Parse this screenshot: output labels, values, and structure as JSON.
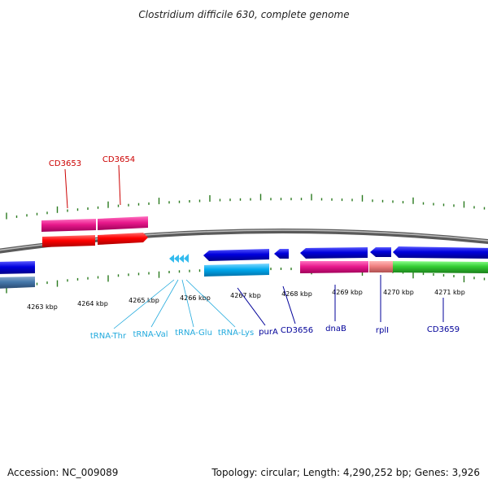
{
  "title": "Clostridium difficile 630, complete genome",
  "footer": {
    "accession": "Accession: NC_009089",
    "summary": "Topology: circular; Length: 4,290,252 bp; Genes: 3,926"
  },
  "colors": {
    "backbone": "#808080",
    "tick": "#2a7a1e",
    "label_red": "#cc0000",
    "label_navy": "#000099",
    "label_cyan": "#22aadd",
    "gene_blue": "#0000dd",
    "gene_magenta": "#e8198c",
    "gene_red": "#ff0000",
    "gene_green": "#33cc33",
    "gene_salmon": "#f08080",
    "gene_cyan": "#00aaee",
    "gene_steel": "#4477aa"
  },
  "scale_labels": [
    "4263 kbp",
    "4264 kbp",
    "4265 kbp",
    "4266 kbp",
    "4267 kbp",
    "4268 kbp",
    "4269 kbp",
    "4270 kbp",
    "4271 kbp"
  ],
  "features": {
    "CD3653": "CD3653",
    "CD3654": "CD3654",
    "tRNA_Thr": "tRNA-Thr",
    "tRNA_Val": "tRNA-Val",
    "tRNA_Glu": "tRNA-Glu",
    "tRNA_Lys": "tRNA-Lys",
    "purA": "purA",
    "CD3656": "CD3656",
    "dnaB": "dnaB",
    "rplI": "rplI",
    "CD3659": "CD3659"
  }
}
